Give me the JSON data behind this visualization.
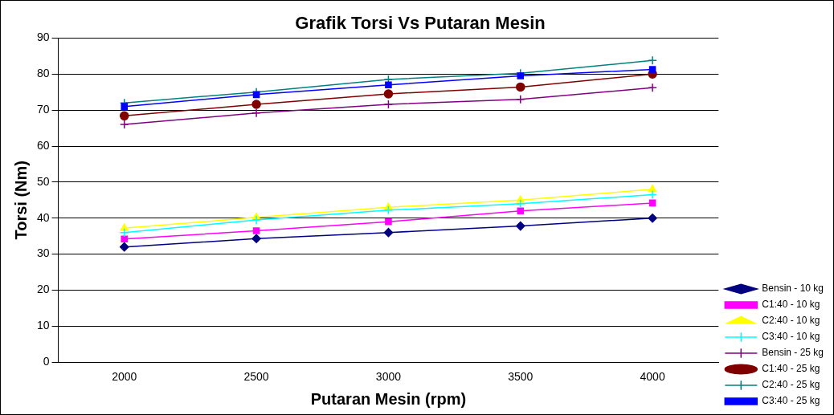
{
  "chart_data": {
    "type": "line",
    "title": "Grafik Torsi Vs Putaran Mesin",
    "xlabel": "Putaran Mesin (rpm)",
    "ylabel": "Torsi (Nm)",
    "categories": [
      "2000",
      "2500",
      "3000",
      "3500",
      "4000"
    ],
    "ylim": [
      0,
      90
    ],
    "yticks": [
      0,
      10,
      20,
      30,
      40,
      50,
      60,
      70,
      80,
      90
    ],
    "grid": "y",
    "legend": "bottom right",
    "series": [
      {
        "name": "Bensin - 10 kg",
        "color": "#000080",
        "marker": "diamond",
        "values": [
          32,
          34.3,
          36,
          37.8,
          40
        ]
      },
      {
        "name": "C1:40 - 10 kg",
        "color": "#ff00ff",
        "marker": "square",
        "values": [
          34.2,
          36.5,
          39,
          42,
          44.2
        ]
      },
      {
        "name": "C2:40 - 10 kg",
        "color": "#ffff00",
        "marker": "triangle",
        "values": [
          37.2,
          40.2,
          43,
          45,
          48
        ]
      },
      {
        "name": "C3:40 - 10 kg",
        "color": "#00ffff",
        "marker": "cross",
        "values": [
          36,
          39.5,
          42.2,
          44,
          46.5
        ]
      },
      {
        "name": "Bensin - 25 kg",
        "color": "#800080",
        "marker": "cross",
        "values": [
          66,
          69.2,
          71.6,
          73,
          76.2
        ]
      },
      {
        "name": "C1:40 - 25 kg",
        "color": "#800000",
        "marker": "circle",
        "values": [
          68.4,
          71.6,
          74.5,
          76.4,
          80
        ]
      },
      {
        "name": "C2:40 - 25 kg",
        "color": "#008080",
        "marker": "cross",
        "values": [
          72,
          75,
          78.5,
          80.2,
          83.8
        ]
      },
      {
        "name": "C3:40 - 25 kg",
        "color": "#0000ff",
        "marker": "square",
        "values": [
          71,
          74.3,
          77,
          79.5,
          81.3
        ]
      }
    ]
  }
}
